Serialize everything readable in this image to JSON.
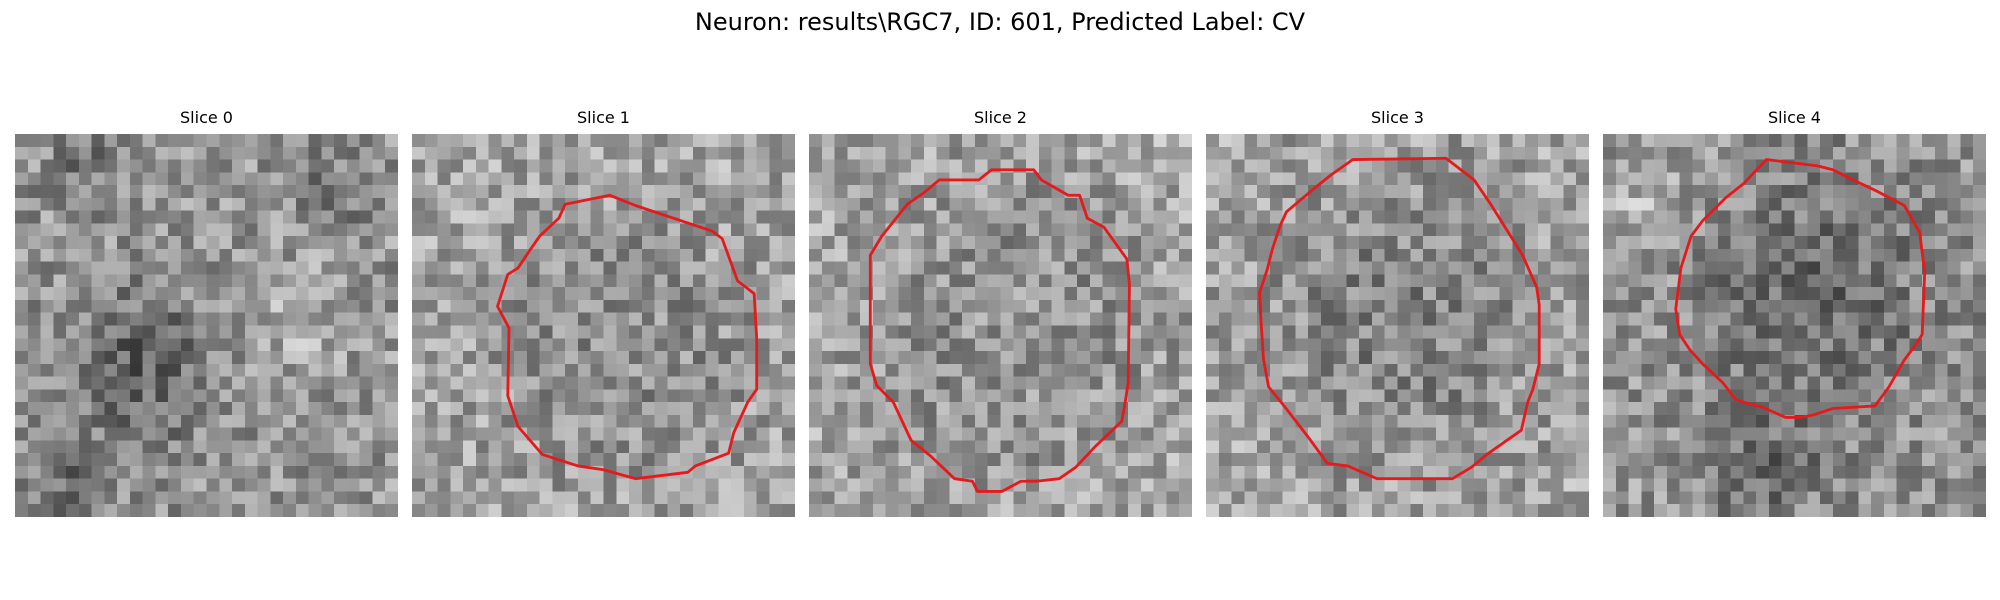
{
  "figure": {
    "title": "Neuron: results\\RGC7, ID: 601, Predicted Label: CV",
    "colormap": "gray",
    "contour_color": "#e41a1c"
  },
  "slices": [
    {
      "title": "Slice 0",
      "has_contour": false
    },
    {
      "title": "Slice 1",
      "has_contour": true
    },
    {
      "title": "Slice 2",
      "has_contour": true
    },
    {
      "title": "Slice 3",
      "has_contour": true
    },
    {
      "title": "Slice 4",
      "has_contour": true
    }
  ]
}
